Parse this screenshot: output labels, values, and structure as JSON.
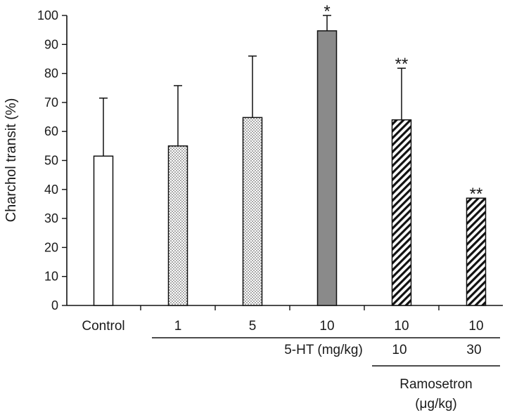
{
  "chart_data": {
    "type": "bar",
    "ylabel": "Charchol transit (%)",
    "ylim": [
      0,
      100
    ],
    "y_ticks": [
      0,
      10,
      20,
      30,
      40,
      50,
      60,
      70,
      80,
      90,
      100
    ],
    "groups": [
      {
        "label": "Control",
        "value": 51.5,
        "error": 20,
        "pattern": "plain",
        "significance": ""
      },
      {
        "label": "1",
        "value": 55,
        "error": 20.8,
        "pattern": "dots",
        "significance": ""
      },
      {
        "label": "5",
        "value": 64.8,
        "error": 21.2,
        "pattern": "dots",
        "significance": ""
      },
      {
        "label": "10",
        "value": 94.7,
        "error": 5.3,
        "pattern": "gray",
        "significance": "*"
      },
      {
        "label": "10",
        "value": 64,
        "error": 17.8,
        "pattern": "hatch",
        "significance": "**"
      },
      {
        "label": "10",
        "value": 37,
        "error": 0,
        "pattern": "hatch",
        "significance": "**"
      }
    ],
    "secondary_row": {
      "line1_label": "5-HT (mg/kg)",
      "ramosetron_doses": [
        "10",
        "30"
      ],
      "line2_label": "Ramosetron",
      "line2_unit": "(μg/kg)"
    }
  }
}
